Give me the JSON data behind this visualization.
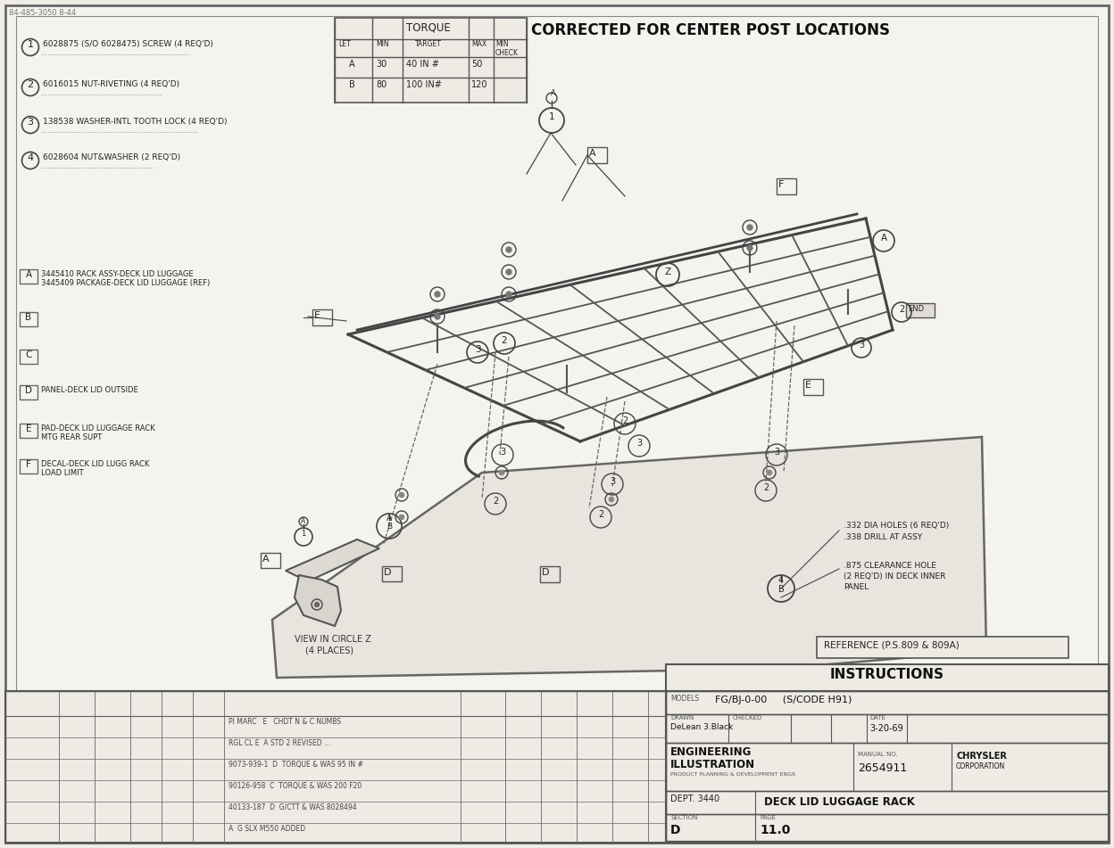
{
  "bg_color": "#f0ede6",
  "paper_color": "#f5f3ee",
  "line_color": "#555555",
  "dark_color": "#333333",
  "title": "CORRECTED FOR CENTER POST LOCATIONS",
  "doc_number": "84-485-3050 8-44",
  "parts_list": [
    {
      "num": "1",
      "text": "6028875 (S/O 6028475) SCREW (4 REQ'D)"
    },
    {
      "num": "2",
      "text": "6016015 NUT-RIVETING (4 REQ'D)"
    },
    {
      "num": "3",
      "text": "138538 WASHER-INTL TOOTH LOCK (4 REQ'D)"
    },
    {
      "num": "4",
      "text": "6028604 NUT&WASHER (2 REQ'D)"
    }
  ],
  "legend_list": [
    {
      "letter": "A",
      "text1": "3445410 RACK ASSY-DECK LID LUGGAGE",
      "text2": "3445409 PACKAGE-DECK LID LUGGAGE (REF)"
    },
    {
      "letter": "B",
      "text1": "",
      "text2": ""
    },
    {
      "letter": "C",
      "text1": "",
      "text2": ""
    },
    {
      "letter": "D",
      "text1": "PANEL-DECK LID OUTSIDE",
      "text2": ""
    },
    {
      "letter": "E",
      "text1": "PAD-DECK LID LUGGAGE RACK",
      "text2": "MTG REAR SUPT"
    },
    {
      "letter": "F",
      "text1": "DECAL-DECK LID LUGG RACK",
      "text2": "LOAD LIMIT"
    }
  ],
  "torque_rows": [
    [
      "A",
      "30",
      "40 IN #",
      "50",
      ""
    ],
    [
      "B",
      "80",
      "100 IN#",
      "120",
      ""
    ]
  ],
  "ann1": ".332 DIA HOLES (6 REQ'D)",
  "ann1b": ".338 DRILL AT ASSY",
  "ann2": ".875 CLEARANCE HOLE",
  "ann2b": "(2 REQ'D) IN DECK INNER",
  "ann2c": "PANEL",
  "reference_box": "REFERENCE (P.S.809 & 809A)",
  "instructions_label": "INSTRUCTIONS",
  "view_label1": "VIEW IN CIRCLE Z",
  "view_label2": "(4 PLACES)",
  "models": "FG/BJ-0-00     (S/CODE H91)",
  "drawn": "DeLean 3.Black",
  "date": "3-20-69",
  "dept": "DEPT. 3440",
  "drawing_title": "DECK LID LUGGAGE RACK",
  "manual_no": "2654911",
  "section": "D",
  "page": "11.0",
  "rev_rows": [
    "PI MARC   E   CHDT N & C NUMBS",
    "RGL CL E  A STD 2 REVISED ...",
    "9073-939-1  D  TORQUE & WAS 95 IN #",
    "90126-958  C  TORQUE & WAS 200 F20",
    "40133-187  D  G/CTT & WAS 8028494",
    "A  G SLX M550 ADDED"
  ]
}
